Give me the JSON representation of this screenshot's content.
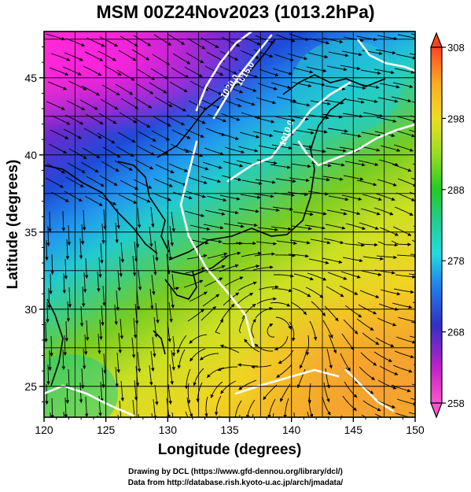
{
  "title": "MSM 00Z24Nov2023 (1013.2hPa)",
  "map": {
    "lon_range": [
      120,
      150
    ],
    "lat_range": [
      23,
      48
    ],
    "lon_ticks": [
      120,
      125,
      130,
      135,
      140,
      145,
      150
    ],
    "lat_ticks": [
      25,
      30,
      35,
      40,
      45
    ],
    "xlabel": "Longitude (degrees)",
    "ylabel": "Latitude  (degrees)",
    "field": "temperature (K) shaded, wind streamlines, white contours"
  },
  "colorbar": {
    "min": 258,
    "max": 308,
    "tick_values": [
      258,
      268,
      278,
      288,
      298,
      308
    ],
    "tick_labels": [
      "258",
      "268",
      "278",
      "288",
      "298",
      "308"
    ]
  },
  "contour_labels": [
    "1020.0",
    "1015.0",
    "1010.0"
  ],
  "credits": {
    "line1": "Drawing by DCL (https://www.gfd-dennou.org/library/dcl/)",
    "line2": "Data from http://database.rish.kyoto-u.ac.jp/arch/jmadata/"
  }
}
